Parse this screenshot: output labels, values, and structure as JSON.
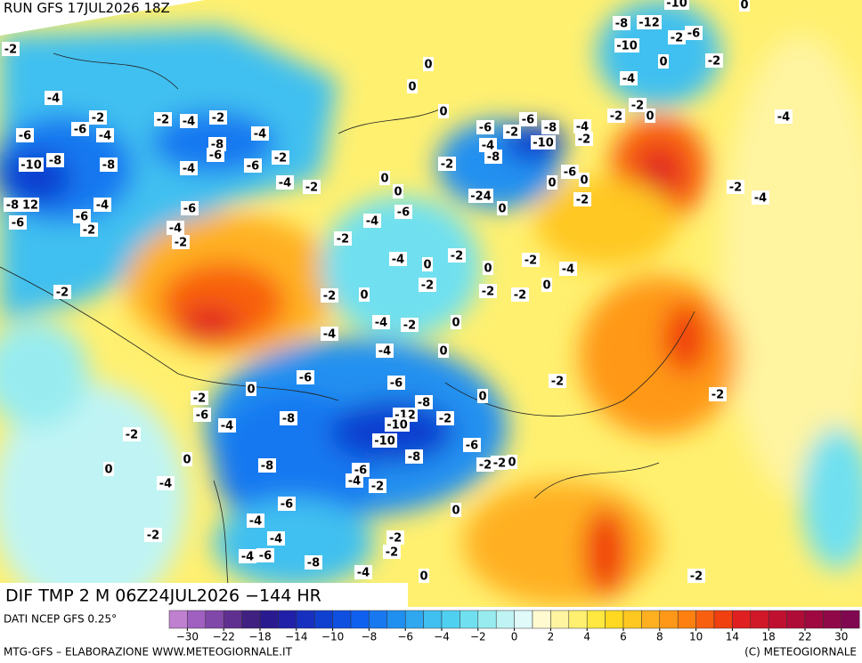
{
  "header": {
    "run": "RUN GFS 17JUL2026 18Z"
  },
  "map": {
    "title": "DIF TMP 2 M 06Z24JUL2026 −144 HR",
    "labels": [
      "-2",
      "-4",
      "-6",
      "-10",
      "-8",
      "-6",
      "-4",
      "-2",
      "-8",
      "-2",
      "-4",
      "-2",
      "-8",
      "-6",
      "-4",
      "-6",
      "-4",
      "-2",
      "-4",
      "-2",
      "-8",
      "12",
      "-6",
      "-6",
      "-2",
      "-4",
      "-6",
      "-4",
      "-2",
      "-2",
      "-2",
      "-4",
      "-6",
      "-4",
      "0",
      "-2",
      "-2",
      "0",
      "-2",
      "-2",
      "-2",
      "0",
      "-4",
      "-2",
      "0",
      "-4",
      "-2",
      "-4",
      "-4",
      "0",
      "0",
      "-6",
      "0",
      "-2",
      "-6",
      "-4",
      "-8",
      "-6",
      "-8",
      "-12",
      "-10",
      "-10",
      "-8",
      "-2",
      "-6",
      "0",
      "-2",
      "0",
      "0",
      "-4",
      "-8",
      "-6",
      "-4",
      "-2",
      "-6",
      "-4",
      "-4",
      "-2",
      "-4",
      "-6",
      "-8",
      "-4",
      "-2",
      "-2",
      "0",
      "0",
      "-2",
      "-2",
      "0",
      "-2",
      "-2",
      "-2",
      "0",
      "0",
      "0",
      "-6",
      "-2",
      "-6",
      "-8",
      "-4",
      "-10",
      "-2",
      "-4",
      "-8",
      "-2",
      "0",
      "0",
      "-24",
      "0",
      "0",
      "-6",
      "0",
      "-2",
      "-8",
      "-12",
      "-2",
      "-6",
      "-10",
      "0",
      "-2",
      "-4",
      "-2",
      "-2",
      "0",
      "-4",
      "-2",
      "-4",
      "0",
      "-10"
    ]
  },
  "colorbar": {
    "source": "DATI NCEP GFS 0.25°",
    "colors": [
      "#c080d0",
      "#a060c0",
      "#8048a8",
      "#603090",
      "#402080",
      "#2a1a90",
      "#2020a8",
      "#1830c0",
      "#1040d0",
      "#1050e0",
      "#1060f0",
      "#1878f0",
      "#2090f0",
      "#30a8f0",
      "#40c0f0",
      "#50d0f0",
      "#70e0f0",
      "#98ecf0",
      "#c0f4f4",
      "#e0fafa",
      "#fffad0",
      "#fff4a0",
      "#fff070",
      "#ffe840",
      "#ffd820",
      "#ffc820",
      "#ffb020",
      "#ff9818",
      "#ff8010",
      "#f86010",
      "#f04010",
      "#e02020",
      "#d01828",
      "#c01030",
      "#b00c38",
      "#a00840",
      "#900848",
      "#800850"
    ],
    "ticks": [
      {
        "value": -30,
        "label": "−30"
      },
      {
        "value": -22,
        "label": "−22"
      },
      {
        "value": -18,
        "label": "−18"
      },
      {
        "value": -14,
        "label": "−14"
      },
      {
        "value": -10,
        "label": "−10"
      },
      {
        "value": -8,
        "label": "−8"
      },
      {
        "value": -6,
        "label": "−6"
      },
      {
        "value": -4,
        "label": "−4"
      },
      {
        "value": -2,
        "label": "−2"
      },
      0,
      2,
      4,
      6,
      8,
      10,
      14,
      18,
      22,
      30
    ]
  },
  "footer": {
    "left": "MTG-GFS – ELABORAZIONE WWW.METEOGIORNALE.IT",
    "right": "(C) METEOGIORNALE"
  }
}
